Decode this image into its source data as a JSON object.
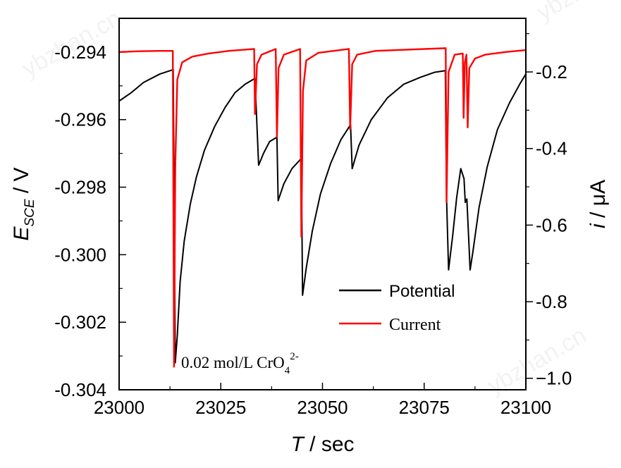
{
  "watermark": "ybzhan.cn",
  "chart_data": {
    "type": "line",
    "x_axis": {
      "label_italic": "T",
      "label_rest": " / sec",
      "range": [
        23000,
        23100
      ],
      "ticks": [
        23000,
        23025,
        23050,
        23075,
        23100
      ],
      "tick_labels": [
        "23000",
        "23025",
        "23050",
        "23075",
        "23100"
      ],
      "minor_step": 12.5
    },
    "y_axis_left": {
      "label_main": "E",
      "label_sub": "SCE",
      "label_rest": " / V",
      "range": [
        -0.304,
        -0.293
      ],
      "ticks": [
        -0.304,
        -0.302,
        -0.3,
        -0.298,
        -0.296,
        -0.294
      ],
      "tick_labels": [
        "-0.304",
        "-0.302",
        "-0.300",
        "-0.298",
        "-0.296",
        "-0.294"
      ],
      "minor_step": 0.001
    },
    "y_axis_right": {
      "label_italic": "i",
      "label_rest": " / μA",
      "range": [
        -1.03,
        -0.06
      ],
      "ticks": [
        -1.0,
        -0.8,
        -0.6,
        -0.4,
        -0.2
      ],
      "tick_labels": [
        "−1.0",
        "-0.8",
        "-0.6",
        "-0.4",
        "-0.2"
      ],
      "minor_step": 0.1
    },
    "series": [
      {
        "name": "Potential",
        "axis": "left",
        "color": "#000000",
        "points": [
          [
            23000,
            -0.29545
          ],
          [
            23003,
            -0.2952
          ],
          [
            23006,
            -0.2949
          ],
          [
            23010,
            -0.29465
          ],
          [
            23013.3,
            -0.29452
          ],
          [
            23013.8,
            -0.3032
          ],
          [
            23014.3,
            -0.3024
          ],
          [
            23015,
            -0.3008
          ],
          [
            23016,
            -0.2996
          ],
          [
            23017.5,
            -0.2985
          ],
          [
            23019,
            -0.2977
          ],
          [
            23021,
            -0.2969
          ],
          [
            23023.5,
            -0.2962
          ],
          [
            23026,
            -0.29565
          ],
          [
            23028.5,
            -0.2952
          ],
          [
            23031,
            -0.29495
          ],
          [
            23033.4,
            -0.29478
          ],
          [
            23034.3,
            -0.29735
          ],
          [
            23035.5,
            -0.297
          ],
          [
            23037,
            -0.29665
          ],
          [
            23038.8,
            -0.29652
          ],
          [
            23039.1,
            -0.2984
          ],
          [
            23040.5,
            -0.2979
          ],
          [
            23042.5,
            -0.29745
          ],
          [
            23044.8,
            -0.29715
          ],
          [
            23045.1,
            -0.3012
          ],
          [
            23046,
            -0.3004
          ],
          [
            23047.5,
            -0.2993
          ],
          [
            23049.5,
            -0.2982
          ],
          [
            23052,
            -0.2973
          ],
          [
            23054.5,
            -0.2966
          ],
          [
            23056.9,
            -0.29615
          ],
          [
            23057.3,
            -0.29745
          ],
          [
            23059,
            -0.29675
          ],
          [
            23062,
            -0.296
          ],
          [
            23066,
            -0.29535
          ],
          [
            23070,
            -0.29495
          ],
          [
            23074,
            -0.29475
          ],
          [
            23077.5,
            -0.2946
          ],
          [
            23080.2,
            -0.29455
          ],
          [
            23080.5,
            -0.2983
          ],
          [
            23081,
            -0.30045
          ],
          [
            23082,
            -0.29945
          ],
          [
            23083,
            -0.2983
          ],
          [
            23084,
            -0.29745
          ],
          [
            23084.8,
            -0.29775
          ],
          [
            23085.1,
            -0.29845
          ],
          [
            23085.5,
            -0.29835
          ],
          [
            23086.3,
            -0.30045
          ],
          [
            23087,
            -0.2999
          ],
          [
            23088.5,
            -0.2986
          ],
          [
            23090.5,
            -0.2974
          ],
          [
            23093,
            -0.2963
          ],
          [
            23096,
            -0.2955
          ],
          [
            23098.5,
            -0.29495
          ],
          [
            23100,
            -0.29465
          ]
        ]
      },
      {
        "name": "Current",
        "axis": "right",
        "color": "#ff0000",
        "points": [
          [
            23000,
            -0.148
          ],
          [
            23005,
            -0.146
          ],
          [
            23010,
            -0.145
          ],
          [
            23013.2,
            -0.145
          ],
          [
            23013.5,
            -0.97
          ],
          [
            23013.8,
            -0.45
          ],
          [
            23014.3,
            -0.22
          ],
          [
            23015.5,
            -0.175
          ],
          [
            23018,
            -0.16
          ],
          [
            23022,
            -0.152
          ],
          [
            23027,
            -0.145
          ],
          [
            23033.2,
            -0.14
          ],
          [
            23033.4,
            -0.31
          ],
          [
            23033.9,
            -0.18
          ],
          [
            23035,
            -0.155
          ],
          [
            23038.5,
            -0.14
          ],
          [
            23038.8,
            -0.37
          ],
          [
            23039.2,
            -0.19
          ],
          [
            23040.5,
            -0.155
          ],
          [
            23044.5,
            -0.14
          ],
          [
            23044.8,
            -0.63
          ],
          [
            23045.2,
            -0.25
          ],
          [
            23046,
            -0.17
          ],
          [
            23049,
            -0.15
          ],
          [
            23056.5,
            -0.14
          ],
          [
            23056.8,
            -0.35
          ],
          [
            23057.3,
            -0.18
          ],
          [
            23058.5,
            -0.155
          ],
          [
            23063,
            -0.145
          ],
          [
            23080.3,
            -0.138
          ],
          [
            23080.5,
            -0.54
          ],
          [
            23081,
            -0.2
          ],
          [
            23082.5,
            -0.155
          ],
          [
            23084.5,
            -0.152
          ],
          [
            23084.7,
            -0.32
          ],
          [
            23085,
            -0.175
          ],
          [
            23085.4,
            -0.155
          ],
          [
            23085.7,
            -0.345
          ],
          [
            23086.1,
            -0.19
          ],
          [
            23087.5,
            -0.165
          ],
          [
            23090,
            -0.155
          ],
          [
            23095,
            -0.148
          ],
          [
            23100,
            -0.143
          ]
        ]
      }
    ],
    "legend": {
      "position": "bottom-right"
    },
    "annotation": {
      "main": "0.02 mol/L CrO",
      "sub": "4",
      "sup": "2-"
    }
  }
}
